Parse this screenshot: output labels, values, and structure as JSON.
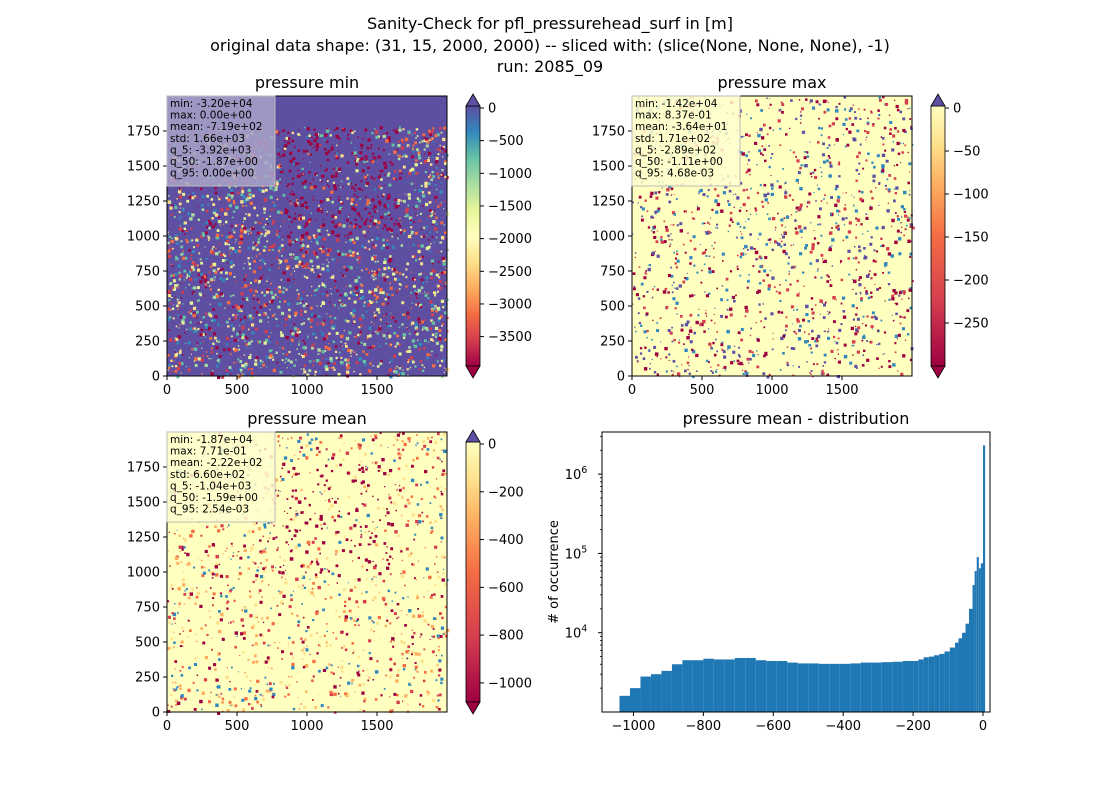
{
  "figure": {
    "title_lines": [
      "Sanity-Check for pfl_pressurehead_surf in [m]",
      "original data shape: (31, 15, 2000, 2000) -- sliced with: (slice(None, None, None), -1)",
      "run: 2085_09"
    ]
  },
  "chart_data": [
    {
      "type": "heatmap",
      "title": "pressure min",
      "x_ticks": [
        0,
        500,
        1000,
        1500
      ],
      "y_ticks": [
        0,
        250,
        500,
        750,
        1000,
        1250,
        1500,
        1750
      ],
      "xlim": [
        0,
        2000
      ],
      "ylim": [
        0,
        2000
      ],
      "colormap": "Spectral",
      "colorbar": {
        "vmin": -3950,
        "vmax": 0,
        "ticks": [
          0,
          -500,
          -1000,
          -1500,
          -2000,
          -2500,
          -3000,
          -3500
        ],
        "extend": "both",
        "extend_min_color": "#9e0142",
        "extend_max_color": "#5e4fa2"
      },
      "stats": [
        "min: -3.20e+04",
        "max: 0.00e+00",
        "mean: -7.19e+02",
        "std: 1.66e+03",
        "q_5: -3.92e+03",
        "q_50: -1.87e+00",
        "q_95: 0.00e+00"
      ],
      "stats_box_color": "#a9a3c9"
    },
    {
      "type": "heatmap",
      "title": "pressure max",
      "x_ticks": [
        0,
        500,
        1000,
        1500
      ],
      "y_ticks": [
        0,
        250,
        500,
        750,
        1000,
        1250,
        1500,
        1750
      ],
      "xlim": [
        0,
        2000
      ],
      "ylim": [
        0,
        2000
      ],
      "colormap": "Spectral",
      "colorbar": {
        "vmin": -300,
        "vmax": 0,
        "ticks": [
          0,
          -50,
          -100,
          -150,
          -200,
          -250
        ],
        "extend": "both",
        "extend_min_color": "#9e0142",
        "extend_max_color": "#5e4fa2"
      },
      "stats": [
        "min: -1.42e+04",
        "max: 8.37e-01",
        "mean: -3.64e+01",
        "std: 1.71e+02",
        "q_5: -2.89e+02",
        "q_50: -1.11e+00",
        "q_95: 4.68e-03"
      ],
      "stats_box_color": "#ffffcf"
    },
    {
      "type": "heatmap",
      "title": "pressure mean",
      "x_ticks": [
        0,
        500,
        1000,
        1500
      ],
      "y_ticks": [
        0,
        250,
        500,
        750,
        1000,
        1250,
        1500,
        1750
      ],
      "xlim": [
        0,
        2000
      ],
      "ylim": [
        0,
        2000
      ],
      "colormap": "Spectral",
      "colorbar": {
        "vmin": -1080,
        "vmax": 0,
        "ticks": [
          0,
          -200,
          -400,
          -600,
          -800,
          -1000
        ],
        "extend": "both",
        "extend_min_color": "#9e0142",
        "extend_max_color": "#5e4fa2"
      },
      "stats": [
        "min: -1.87e+04",
        "max: 7.71e-01",
        "mean: -2.22e+02",
        "std: 6.60e+02",
        "q_5: -1.04e+03",
        "q_50: -1.59e+00",
        "q_95: 2.54e-03"
      ],
      "stats_box_color": "#ffffcf"
    },
    {
      "type": "bar",
      "title": "pressure mean - distribution",
      "ylabel": "# of occurrence",
      "yscale": "log",
      "xlim": [
        -1090,
        20
      ],
      "ylim": [
        1000,
        3400000
      ],
      "x_ticks": [
        -1000,
        -800,
        -600,
        -400,
        -200,
        0
      ],
      "y_tick_exponents": [
        4,
        5,
        6
      ],
      "bar_color": "#1f77b4",
      "bin_width": 6,
      "bins": [
        [
          -1040,
          1600
        ],
        [
          -1010,
          2000
        ],
        [
          -980,
          2800
        ],
        [
          -950,
          3000
        ],
        [
          -920,
          3300
        ],
        [
          -890,
          4000
        ],
        [
          -860,
          4500
        ],
        [
          -830,
          4500
        ],
        [
          -800,
          4700
        ],
        [
          -770,
          4600
        ],
        [
          -740,
          4600
        ],
        [
          -710,
          4800
        ],
        [
          -680,
          4800
        ],
        [
          -650,
          4500
        ],
        [
          -620,
          4400
        ],
        [
          -590,
          4400
        ],
        [
          -560,
          4200
        ],
        [
          -530,
          4100
        ],
        [
          -500,
          4100
        ],
        [
          -470,
          4050
        ],
        [
          -440,
          4050
        ],
        [
          -410,
          4050
        ],
        [
          -380,
          4100
        ],
        [
          -350,
          4200
        ],
        [
          -320,
          4200
        ],
        [
          -290,
          4250
        ],
        [
          -260,
          4300
        ],
        [
          -230,
          4400
        ],
        [
          -200,
          4400
        ],
        [
          -185,
          4600
        ],
        [
          -170,
          4900
        ],
        [
          -155,
          5000
        ],
        [
          -140,
          5200
        ],
        [
          -125,
          5400
        ],
        [
          -110,
          5800
        ],
        [
          -95,
          6500
        ],
        [
          -80,
          7500
        ],
        [
          -70,
          8500
        ],
        [
          -60,
          10000
        ],
        [
          -50,
          13000
        ],
        [
          -40,
          20000
        ],
        [
          -30,
          40000
        ],
        [
          -24,
          60000
        ],
        [
          -18,
          90000
        ],
        [
          -12,
          65000
        ],
        [
          -6,
          75000
        ],
        [
          0,
          2300000
        ]
      ]
    }
  ]
}
